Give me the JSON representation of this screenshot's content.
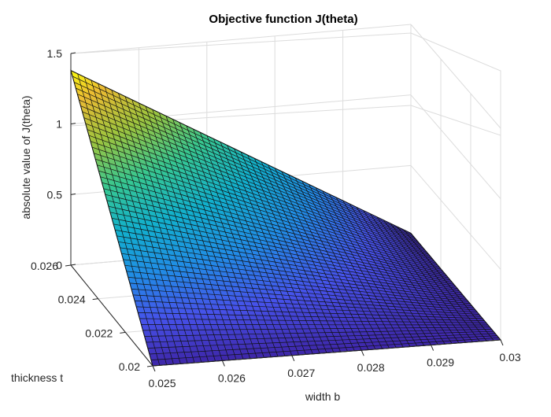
{
  "chart_data": {
    "type": "surface",
    "title": "Objective function J(theta)",
    "xlabel": "width b",
    "ylabel": "thickness t",
    "zlabel": "absolute value of J(theta)",
    "x_range": [
      0.025,
      0.03
    ],
    "y_range": [
      0.02,
      0.026
    ],
    "z_range": [
      0,
      1.5
    ],
    "x_ticks": [
      "0.025",
      "0.026",
      "0.027",
      "0.028",
      "0.029",
      "0.03"
    ],
    "y_ticks": [
      "0.02",
      "0.022",
      "0.024",
      "0.026"
    ],
    "z_ticks": [
      "0",
      "0.5",
      "1",
      "1.5"
    ],
    "grid": true,
    "colormap": "parula",
    "corner_values": {
      "b_0.025_t_0.02": 0,
      "b_0.03_t_0.02": 0,
      "b_0.03_t_0.026": 0.02,
      "b_0.025_t_0.026": 1.38
    },
    "mesh_lines_per_axis": 51
  }
}
